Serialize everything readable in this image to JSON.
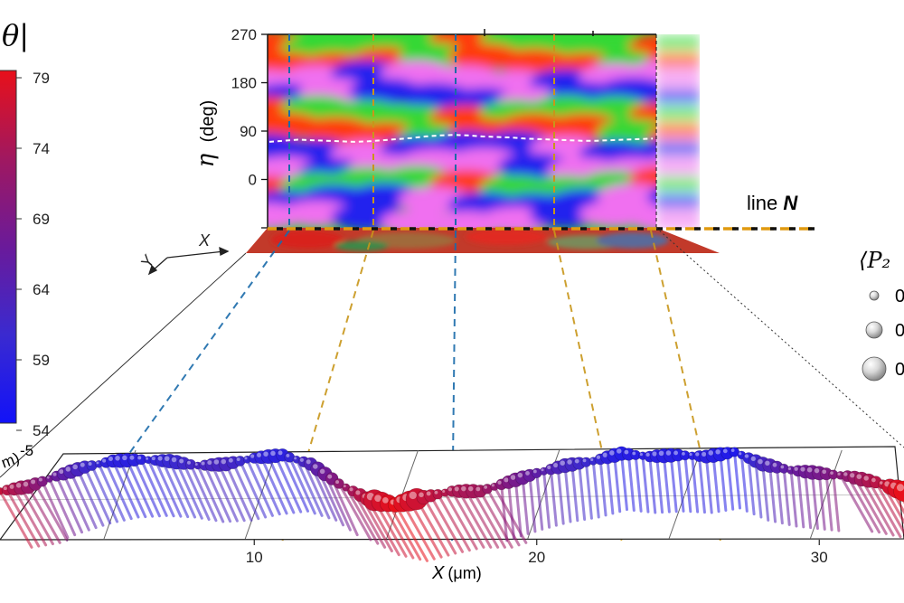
{
  "chart_data": [
    {
      "type": "heatmap",
      "title": "",
      "xlabel": "",
      "ylabel": "η (deg)",
      "ylabel_symbol": "η",
      "ylabel_unit": "(deg)",
      "yticks": [
        270,
        180,
        90,
        0
      ],
      "ylim": [
        -90,
        270
      ],
      "colors": [
        "#34d834",
        "#ff3a10",
        "#2222ee",
        "#f070f0"
      ],
      "stripe_pattern": [
        "green",
        "red",
        "magenta",
        "blue",
        "green",
        "red",
        "blue",
        "magenta",
        "green",
        "blue",
        "magenta"
      ],
      "dashed_line_eta": [
        70,
        72,
        74,
        73,
        72,
        71,
        70,
        71,
        73,
        75,
        77,
        80,
        82,
        83,
        82,
        80,
        79,
        78,
        76,
        75,
        74,
        73,
        72,
        72,
        73,
        74,
        75,
        76
      ],
      "annotation": "line N",
      "annotation_prefix": "line ",
      "annotation_bold": "N",
      "axes_labels": {
        "x": "X",
        "y": "Y"
      }
    },
    {
      "type": "scatter",
      "xlabel": "X (μm)",
      "xlabel_symbol": "X",
      "xlabel_unit": "(μm)",
      "xticks": [
        10,
        20,
        30
      ],
      "xlim": [
        1,
        33
      ],
      "zlabel_fragment": "m)",
      "z_tick": "-5",
      "colorbar": {
        "label": "θ|",
        "ticks": [
          79,
          74,
          69,
          64,
          59,
          54
        ],
        "range": [
          54,
          79
        ],
        "colors": [
          "#e8101a",
          "#a01860",
          "#6a1a9a",
          "#3a2ad0",
          "#1212f8"
        ]
      },
      "size_legend_title": "⟨P₂",
      "size_legend_labels": [
        "0",
        "0",
        "0"
      ],
      "guide_lines_x_um": [
        4,
        11,
        17,
        23,
        26.5
      ],
      "points": [
        {
          "x": 1.0,
          "z": -1.0,
          "theta": 76
        },
        {
          "x": 2.0,
          "z": -1.3,
          "theta": 72
        },
        {
          "x": 3.0,
          "z": -2.0,
          "theta": 66
        },
        {
          "x": 4.0,
          "z": -2.6,
          "theta": 61
        },
        {
          "x": 5.0,
          "z": -3.0,
          "theta": 58
        },
        {
          "x": 6.0,
          "z": -3.1,
          "theta": 58
        },
        {
          "x": 7.0,
          "z": -3.0,
          "theta": 60
        },
        {
          "x": 8.0,
          "z": -2.7,
          "theta": 62
        },
        {
          "x": 9.0,
          "z": -2.8,
          "theta": 62
        },
        {
          "x": 10.0,
          "z": -3.2,
          "theta": 59
        },
        {
          "x": 11.0,
          "z": -3.4,
          "theta": 58
        },
        {
          "x": 12.0,
          "z": -2.8,
          "theta": 63
        },
        {
          "x": 13.0,
          "z": -1.5,
          "theta": 71
        },
        {
          "x": 14.0,
          "z": -0.5,
          "theta": 76
        },
        {
          "x": 15.0,
          "z": -0.1,
          "theta": 79
        },
        {
          "x": 16.0,
          "z": -0.6,
          "theta": 76
        },
        {
          "x": 17.0,
          "z": -1.0,
          "theta": 74
        },
        {
          "x": 18.0,
          "z": -1.0,
          "theta": 73
        },
        {
          "x": 19.0,
          "z": -1.6,
          "theta": 69
        },
        {
          "x": 20.0,
          "z": -2.2,
          "theta": 65
        },
        {
          "x": 21.0,
          "z": -2.7,
          "theta": 62
        },
        {
          "x": 22.0,
          "z": -3.0,
          "theta": 60
        },
        {
          "x": 23.0,
          "z": -3.5,
          "theta": 57
        },
        {
          "x": 24.0,
          "z": -3.3,
          "theta": 58
        },
        {
          "x": 25.0,
          "z": -3.4,
          "theta": 57
        },
        {
          "x": 26.0,
          "z": -3.3,
          "theta": 58
        },
        {
          "x": 27.0,
          "z": -3.6,
          "theta": 56
        },
        {
          "x": 28.0,
          "z": -2.8,
          "theta": 62
        },
        {
          "x": 29.0,
          "z": -2.4,
          "theta": 66
        },
        {
          "x": 30.0,
          "z": -2.2,
          "theta": 68
        },
        {
          "x": 31.0,
          "z": -2.0,
          "theta": 71
        },
        {
          "x": 32.0,
          "z": -1.6,
          "theta": 75
        },
        {
          "x": 33.0,
          "z": -1.0,
          "theta": 79
        }
      ]
    }
  ]
}
